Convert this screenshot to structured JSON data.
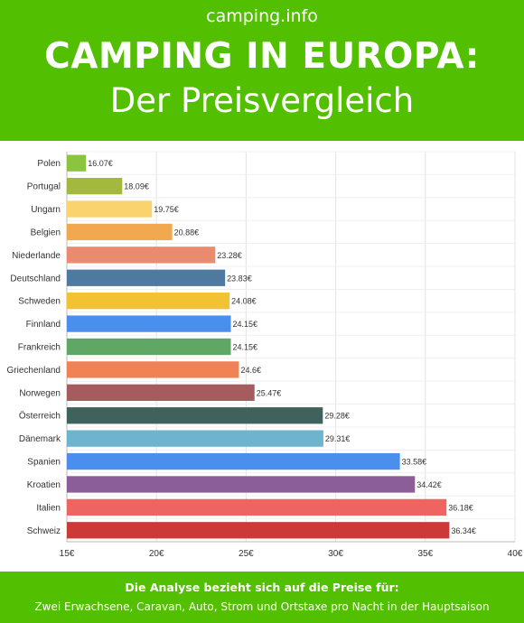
{
  "header": {
    "site": "camping.info",
    "title_line1": "CAMPING IN EUROPA:",
    "title_line2": "Der Preisvergleich"
  },
  "footer": {
    "line1": "Die Analyse bezieht sich auf die Preise für:",
    "line2": "Zwei Erwachsene, Caravan, Auto, Strom und Ortstaxe pro Nacht in der Hauptsaison"
  },
  "chart_data": {
    "type": "bar",
    "orientation": "horizontal",
    "categories": [
      "Polen",
      "Portugal",
      "Ungarn",
      "Belgien",
      "Niederlande",
      "Deutschland",
      "Schweden",
      "Finnland",
      "Frankreich",
      "Griechenland",
      "Norwegen",
      "Österreich",
      "Dänemark",
      "Spanien",
      "Kroatien",
      "Italien",
      "Schweiz"
    ],
    "values": [
      16.07,
      18.09,
      19.75,
      20.88,
      23.28,
      23.83,
      24.08,
      24.15,
      24.15,
      24.6,
      25.47,
      29.28,
      29.31,
      33.58,
      34.42,
      36.18,
      36.34
    ],
    "value_labels": [
      "16.07€",
      "18.09€",
      "19.75€",
      "20.88€",
      "23.28€",
      "23.83€",
      "24.08€",
      "24.15€",
      "24.15€",
      "24.6€",
      "25.47€",
      "29.28€",
      "29.31€",
      "33.58€",
      "34.42€",
      "36.18€",
      "36.34€"
    ],
    "colors": [
      "#8cc43d",
      "#a2b83e",
      "#fad26e",
      "#f2a84e",
      "#ea8a6f",
      "#4f7a9f",
      "#f2c232",
      "#4a8fee",
      "#5fa765",
      "#f08356",
      "#a65b5e",
      "#3f625c",
      "#6fb4ce",
      "#4a8fee",
      "#8b5e9a",
      "#ee6460",
      "#cc3a38"
    ],
    "xlim": [
      15,
      40
    ],
    "x_ticks": [
      15,
      20,
      25,
      30,
      35,
      40
    ],
    "x_tick_labels": [
      "15€",
      "20€",
      "25€",
      "30€",
      "35€",
      "40€"
    ],
    "grid": true
  }
}
